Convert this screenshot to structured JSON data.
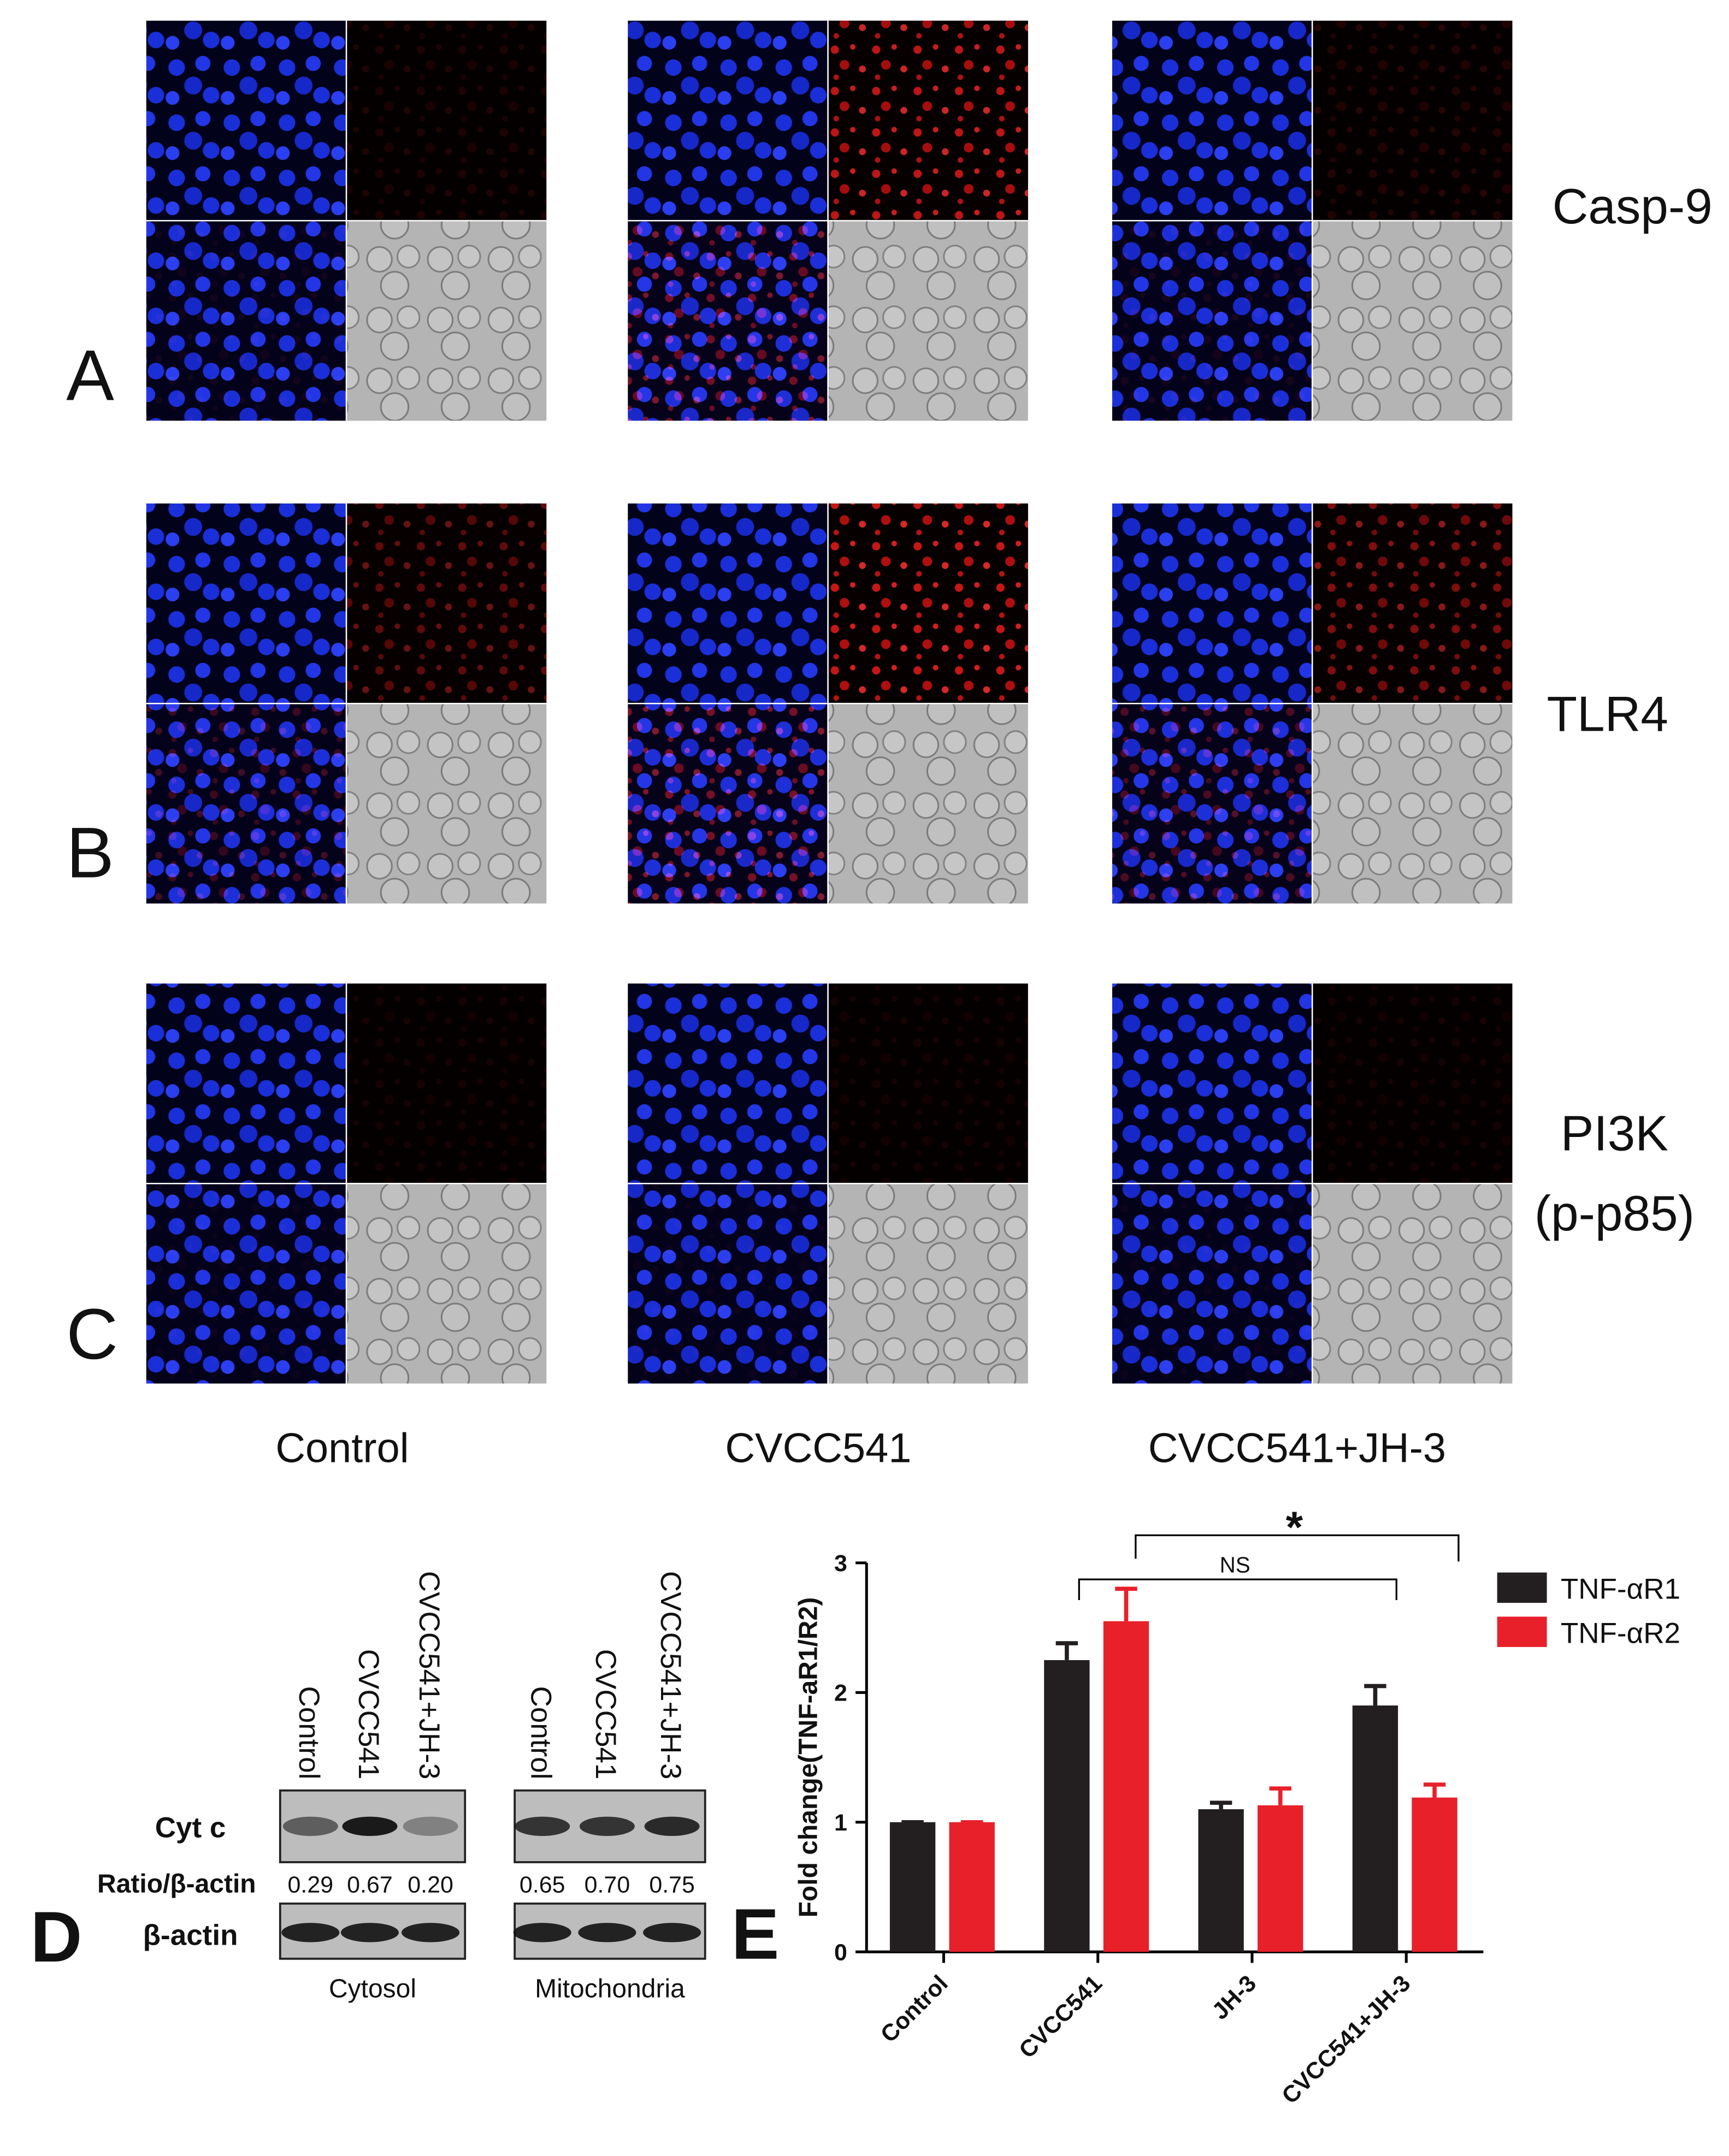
{
  "image_rows": [
    {
      "label": "A",
      "marker": [
        "Casp-9"
      ]
    },
    {
      "label": "B",
      "marker": [
        "TLR4"
      ]
    },
    {
      "label": "C",
      "marker": [
        "PI3K",
        "(p-p85)"
      ]
    }
  ],
  "columns": [
    "Control",
    "CVCC541",
    "CVCC541+JH-3"
  ],
  "blot": {
    "label": "D",
    "lanes": [
      "Control",
      "CVCC541",
      "CVCC541+JH-3"
    ],
    "rows": [
      "Cyt c",
      "Ratio/β-actin",
      "β-actin"
    ],
    "fractions": [
      {
        "name": "Cytosol",
        "ratios": [
          "0.29",
          "0.67",
          "0.20"
        ]
      },
      {
        "name": "Mitochondria",
        "ratios": [
          "0.65",
          "0.70",
          "0.75"
        ]
      }
    ]
  },
  "chart_data": {
    "panel_label": "E",
    "type": "bar",
    "y_label": "Fold change(TNF-aR1/R2)",
    "categories": [
      "Control",
      "CVCC541",
      "JH-3",
      "CVCC541+JH-3"
    ],
    "series": [
      {
        "name": "TNF-αR1",
        "color": "#231f20",
        "values": [
          1,
          2.25,
          1.1,
          1.9
        ],
        "errors": [
          0,
          0.13,
          0.05,
          0.15
        ]
      },
      {
        "name": "TNF-αR2",
        "color": "#e8202a",
        "values": [
          1,
          2.55,
          1.13,
          1.19
        ],
        "errors": [
          0,
          0.25,
          0.13,
          0.1
        ]
      }
    ],
    "ylim": [
      0,
      3
    ],
    "yticks": [
      0,
      1,
      2,
      3
    ],
    "annotations": [
      "NS",
      "*"
    ]
  }
}
